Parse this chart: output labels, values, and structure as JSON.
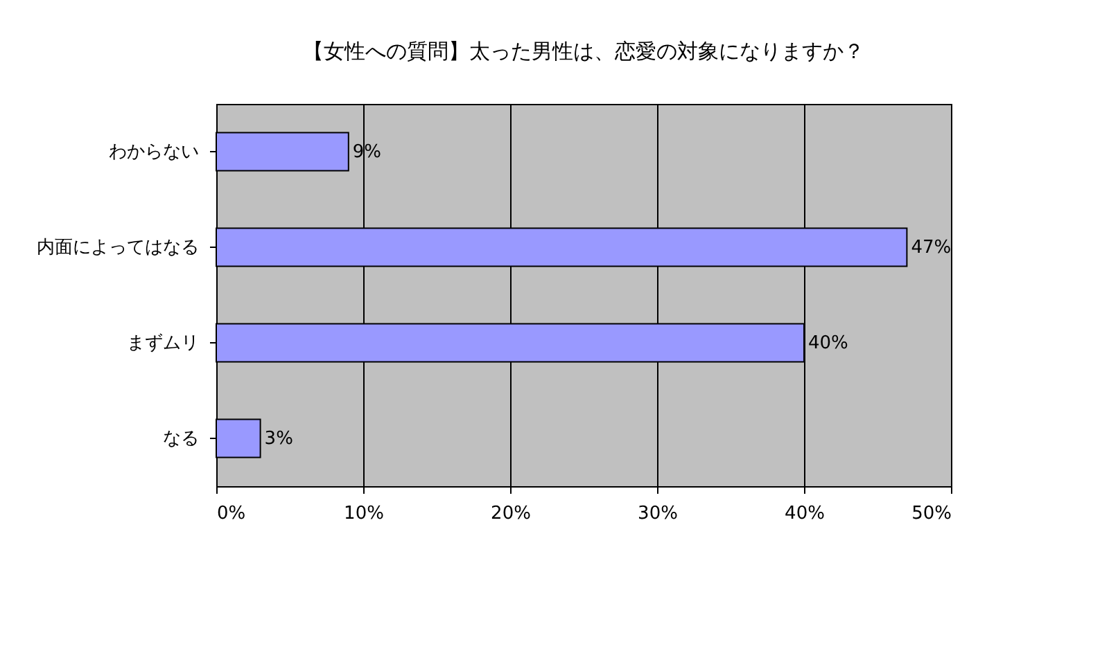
{
  "chart_data": {
    "type": "bar",
    "orientation": "horizontal",
    "title": "【女性への質問】太った男性は、恋愛の対象になりますか？",
    "categories": [
      "わからない",
      "内面によってはなる",
      "まずムリ",
      "なる"
    ],
    "values": [
      9,
      47,
      40,
      3
    ],
    "color": "#9999ff",
    "value_labels": [
      "9%",
      "47%",
      "40%",
      "3%"
    ],
    "xlim": [
      0,
      50
    ],
    "xticks": [
      {
        "value": 0,
        "label": "0%"
      },
      {
        "value": 10,
        "label": "10%"
      },
      {
        "value": 20,
        "label": "20%"
      },
      {
        "value": 30,
        "label": "30%"
      },
      {
        "value": 40,
        "label": "40%"
      },
      {
        "value": 50,
        "label": "50%"
      }
    ],
    "grid": "x"
  }
}
